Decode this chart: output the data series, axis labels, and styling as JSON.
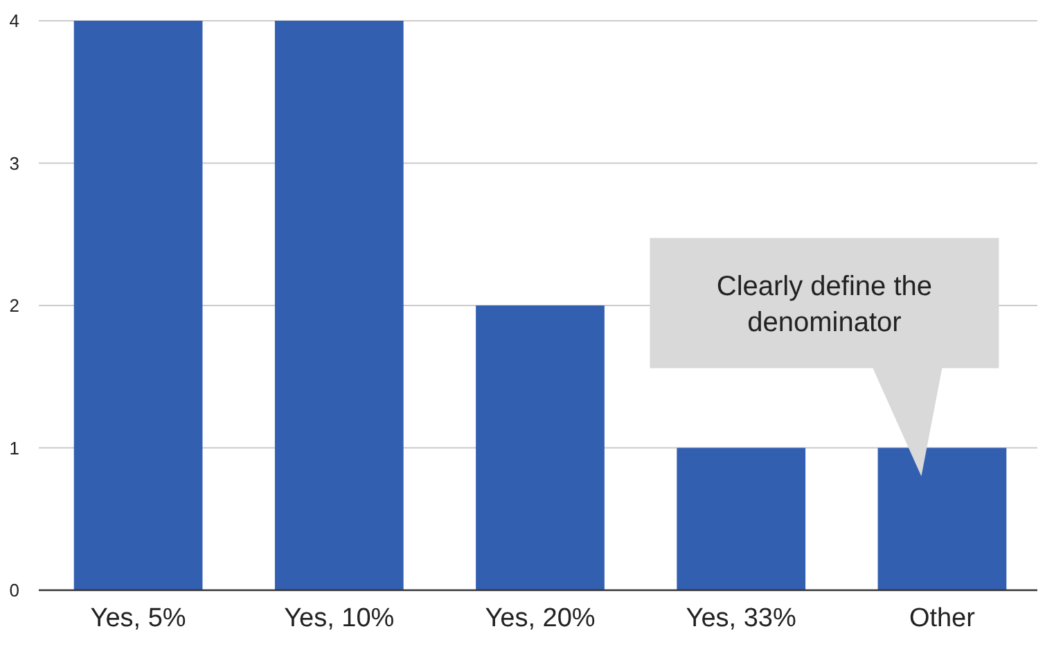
{
  "chart_data": {
    "type": "bar",
    "categories": [
      "Yes, 5%",
      "Yes, 10%",
      "Yes, 20%",
      "Yes, 33%",
      "Other"
    ],
    "values": [
      4,
      4,
      2,
      1,
      1
    ],
    "color": "#335fb0",
    "ylim": [
      0,
      4
    ],
    "yticks": [
      0,
      1,
      2,
      3,
      4
    ],
    "grid": "y",
    "annotations": [
      "Clearly define the denominator"
    ]
  }
}
